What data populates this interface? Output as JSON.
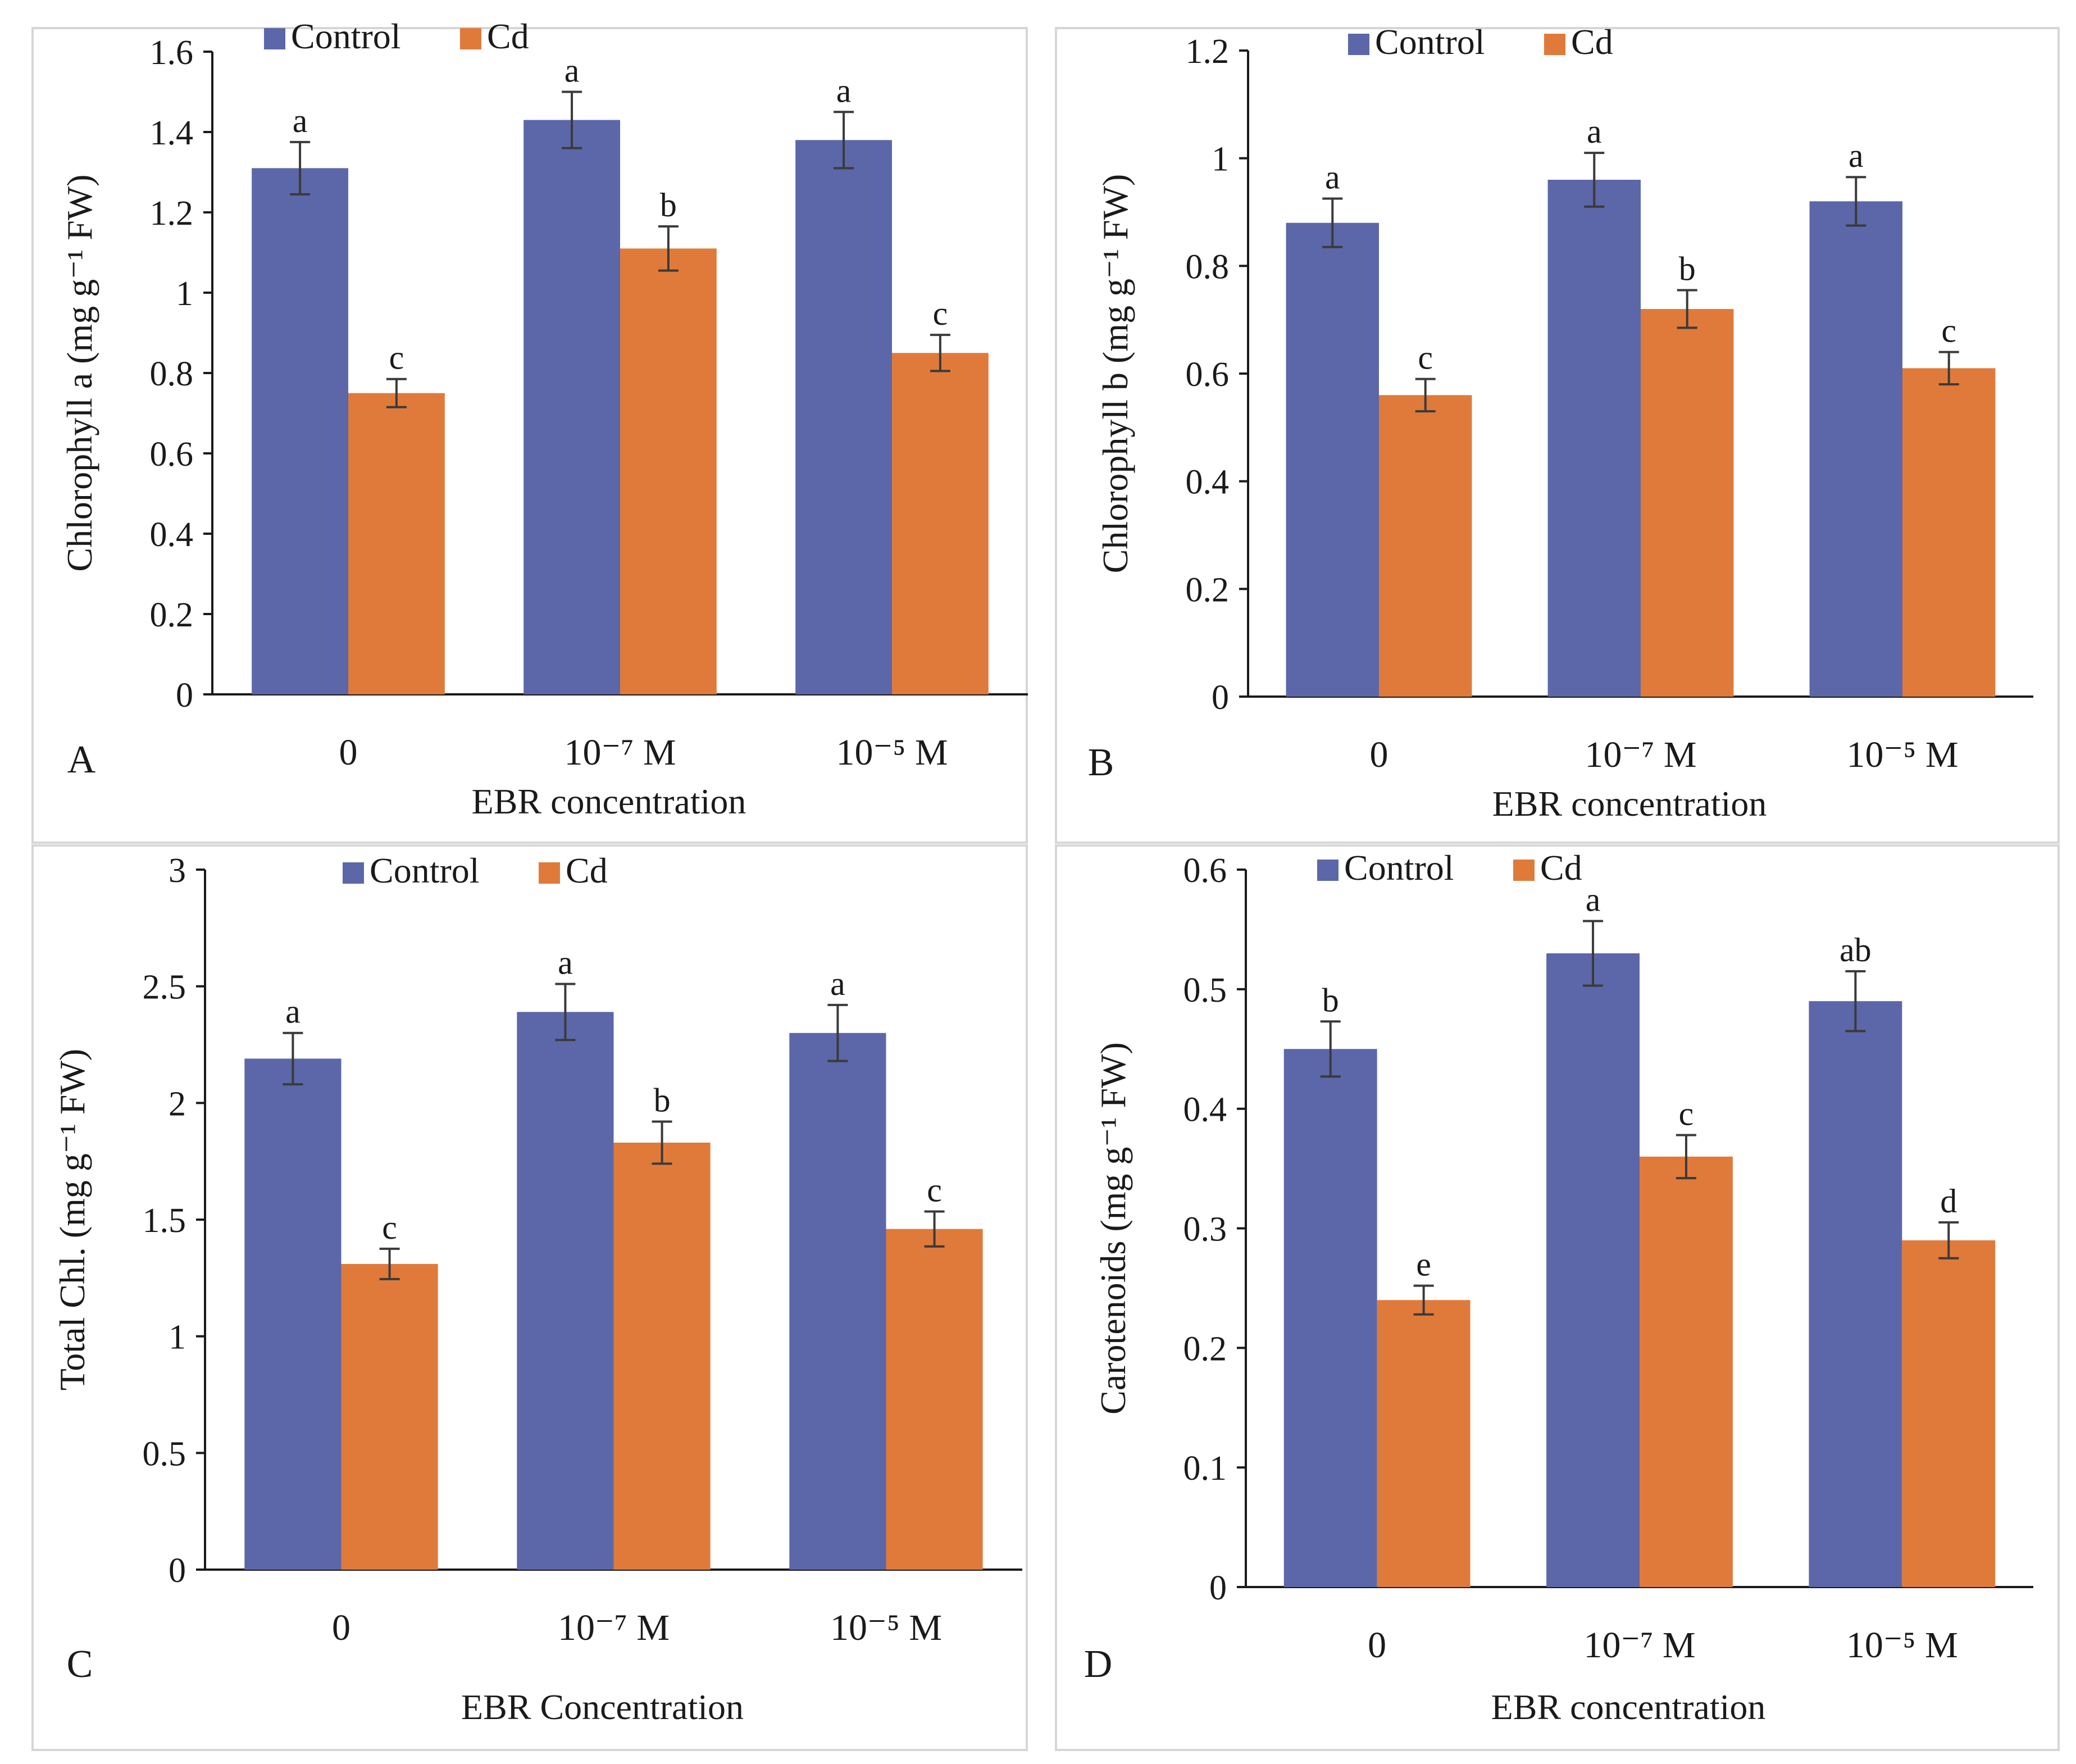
{
  "colors": {
    "control": "#5b67a8",
    "cd": "#e07a3a"
  },
  "chart_data": [
    {
      "type": "bar",
      "panel_label": "A",
      "ylabel": "Chlorophyll a (mg g⁻¹ FW)",
      "xlabel": "EBR concentration",
      "categories": [
        "0",
        "10⁻⁷ M",
        "10⁻⁵ M"
      ],
      "ylim": [
        0,
        1.6
      ],
      "yticks": [
        "0",
        "0.2",
        "0.4",
        "0.6",
        "0.8",
        "1",
        "1.2",
        "1.4",
        "1.6"
      ],
      "legend": [
        "Control",
        "Cd"
      ],
      "series": [
        {
          "name": "Control",
          "values": [
            1.31,
            1.43,
            1.38
          ],
          "errors": [
            0.065,
            0.07,
            0.07
          ],
          "letters": [
            "a",
            "a",
            "a"
          ]
        },
        {
          "name": "Cd",
          "values": [
            0.75,
            1.11,
            0.85
          ],
          "errors": [
            0.035,
            0.055,
            0.045
          ],
          "letters": [
            "c",
            "b",
            "c"
          ]
        }
      ]
    },
    {
      "type": "bar",
      "panel_label": "B",
      "ylabel": "Chlorophyll b (mg g⁻¹ FW)",
      "xlabel": "EBR concentration",
      "categories": [
        "0",
        "10⁻⁷ M",
        "10⁻⁵ M"
      ],
      "ylim": [
        0,
        1.2
      ],
      "yticks": [
        "0",
        "0.2",
        "0.4",
        "0.6",
        "0.8",
        "1",
        "1.2"
      ],
      "legend": [
        "Control",
        "Cd"
      ],
      "series": [
        {
          "name": "Control",
          "values": [
            0.88,
            0.96,
            0.92
          ],
          "errors": [
            0.045,
            0.05,
            0.045
          ],
          "letters": [
            "a",
            "a",
            "a"
          ]
        },
        {
          "name": "Cd",
          "values": [
            0.56,
            0.72,
            0.61
          ],
          "errors": [
            0.03,
            0.035,
            0.03
          ],
          "letters": [
            "c",
            "b",
            "c"
          ]
        }
      ]
    },
    {
      "type": "bar",
      "panel_label": "C",
      "ylabel": "Total Chl. (mg g⁻¹ FW)",
      "xlabel": "EBR Concentration",
      "categories": [
        "0",
        "10⁻⁷ M",
        "10⁻⁵ M"
      ],
      "ylim": [
        0,
        3
      ],
      "yticks": [
        "0",
        "0.5",
        "1",
        "1.5",
        "2",
        "2.5",
        "3"
      ],
      "legend": [
        "Control",
        "Cd"
      ],
      "series": [
        {
          "name": "Control",
          "values": [
            2.19,
            2.39,
            2.3
          ],
          "errors": [
            0.11,
            0.12,
            0.12
          ],
          "letters": [
            "a",
            "a",
            "a"
          ]
        },
        {
          "name": "Cd",
          "values": [
            1.31,
            1.83,
            1.46
          ],
          "errors": [
            0.065,
            0.09,
            0.075
          ],
          "letters": [
            "c",
            "b",
            "c"
          ]
        }
      ]
    },
    {
      "type": "bar",
      "panel_label": "D",
      "ylabel": "Carotenoids (mg g⁻¹ FW)",
      "xlabel": "EBR concentration",
      "categories": [
        "0",
        "10⁻⁷ M",
        "10⁻⁵ M"
      ],
      "ylim": [
        0,
        0.6
      ],
      "yticks": [
        "0",
        "0.1",
        "0.2",
        "0.3",
        "0.4",
        "0.5",
        "0.6"
      ],
      "legend": [
        "Control",
        "Cd"
      ],
      "series": [
        {
          "name": "Control",
          "values": [
            0.45,
            0.53,
            0.49
          ],
          "errors": [
            0.023,
            0.027,
            0.025
          ],
          "letters": [
            "b",
            "a",
            "ab"
          ]
        },
        {
          "name": "Cd",
          "values": [
            0.24,
            0.36,
            0.29
          ],
          "errors": [
            0.012,
            0.018,
            0.015
          ],
          "letters": [
            "e",
            "c",
            "d"
          ]
        }
      ]
    }
  ]
}
